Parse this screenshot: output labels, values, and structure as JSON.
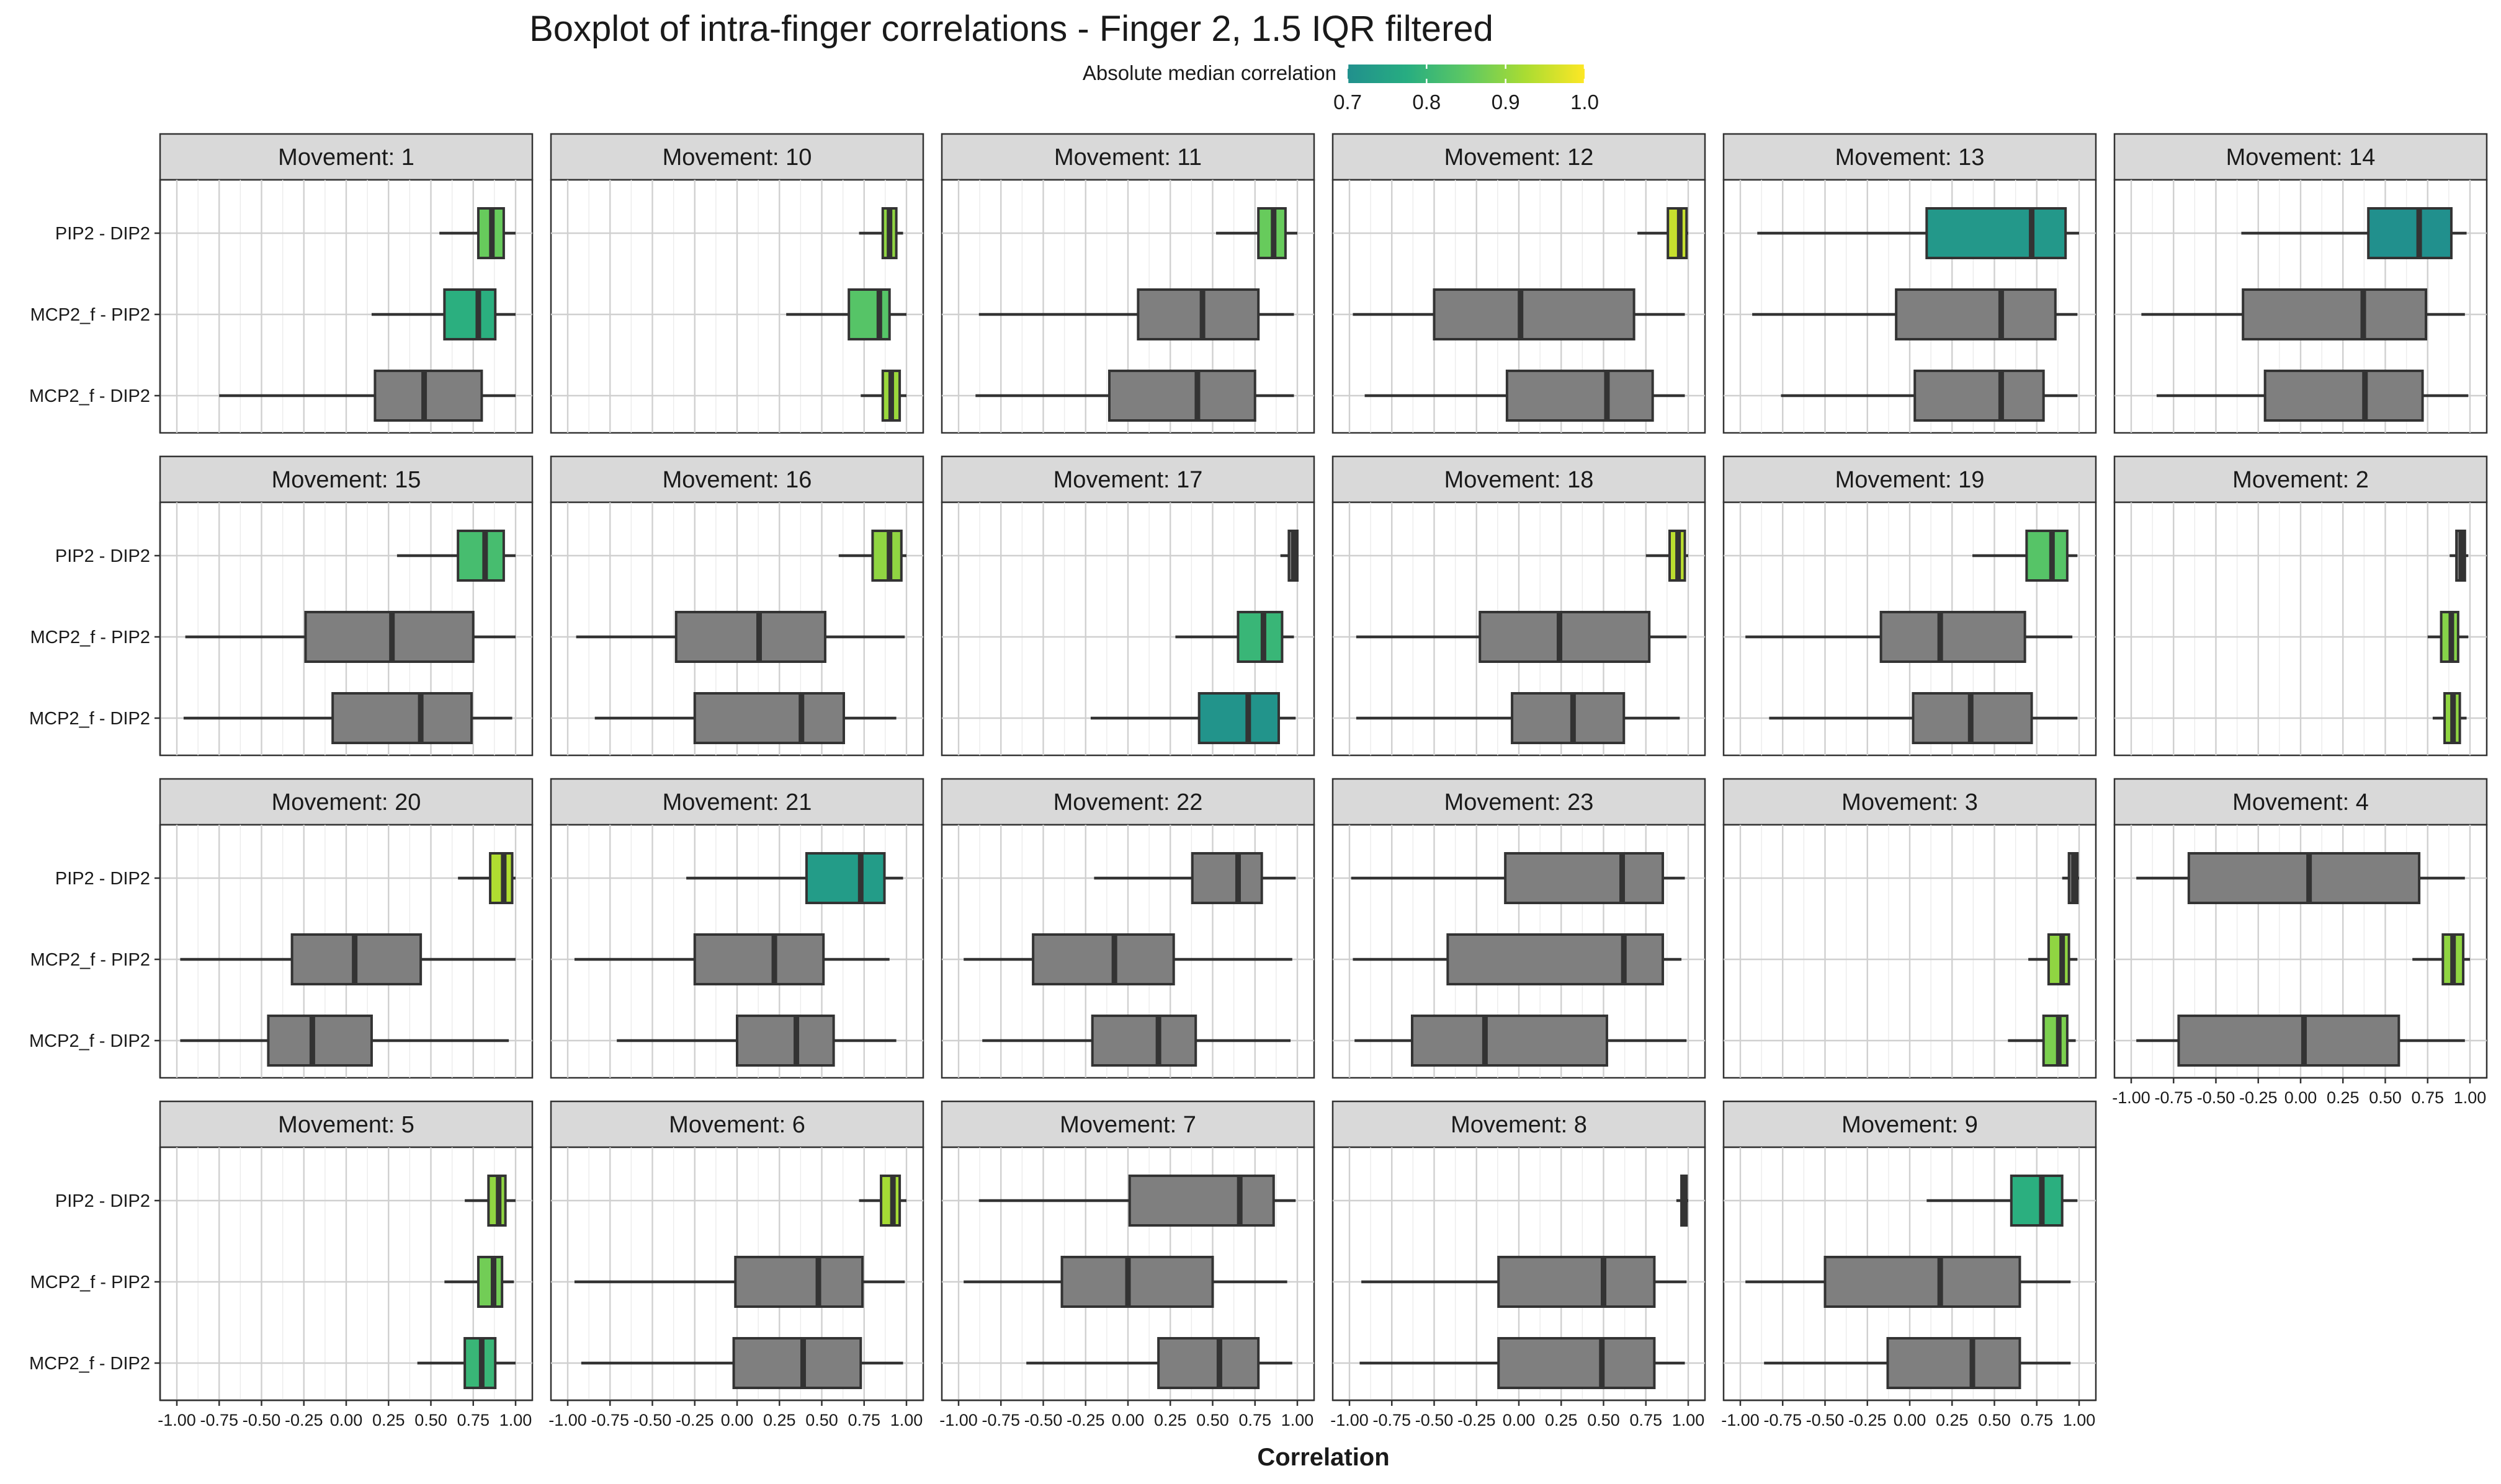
{
  "title": "Boxplot of intra-finger correlations - Finger 2, 1.5 IQR filtered",
  "chart_data": {
    "type": "boxplot",
    "facet_prefix": "Movement: ",
    "categories": [
      "PIP2 - DIP2",
      "MCP2_f - PIP2",
      "MCP2_f - DIP2"
    ],
    "xlabel": "Correlation",
    "xlim": [
      -1.0,
      1.0
    ],
    "x_ticks": [
      "-1.00",
      "-0.75",
      "-0.50",
      "-0.25",
      "0.00",
      "0.25",
      "0.50",
      "0.75",
      "1.00"
    ],
    "grid": true,
    "legend": {
      "title": "Absolute median correlation",
      "position": "top",
      "range": [
        0.7,
        1.0
      ],
      "ticks": [
        "0.7",
        "0.8",
        "0.9",
        "1.0"
      ],
      "colors": [
        "#21908d",
        "#27ad81",
        "#5dc863",
        "#aadc32",
        "#fde725"
      ],
      "na_color": "#7f7f7f"
    },
    "panels": [
      {
        "movement": "1",
        "boxes": [
          {
            "category": "PIP2 - DIP2",
            "min": 0.55,
            "q1": 0.78,
            "median": 0.86,
            "q3": 0.93,
            "max": 1.0,
            "colored": true
          },
          {
            "category": "MCP2_f - PIP2",
            "min": 0.15,
            "q1": 0.58,
            "median": 0.78,
            "q3": 0.88,
            "max": 1.0,
            "colored": true
          },
          {
            "category": "MCP2_f - DIP2",
            "min": -0.75,
            "q1": 0.17,
            "median": 0.46,
            "q3": 0.8,
            "max": 1.0,
            "colored": false
          }
        ]
      },
      {
        "movement": "10",
        "boxes": [
          {
            "category": "PIP2 - DIP2",
            "min": 0.72,
            "q1": 0.86,
            "median": 0.9,
            "q3": 0.94,
            "max": 0.98,
            "colored": true
          },
          {
            "category": "MCP2_f - PIP2",
            "min": 0.29,
            "q1": 0.66,
            "median": 0.84,
            "q3": 0.9,
            "max": 1.0,
            "colored": true
          },
          {
            "category": "MCP2_f - DIP2",
            "min": 0.73,
            "q1": 0.86,
            "median": 0.91,
            "q3": 0.96,
            "max": 1.0,
            "colored": true
          }
        ]
      },
      {
        "movement": "11",
        "boxes": [
          {
            "category": "PIP2 - DIP2",
            "min": 0.52,
            "q1": 0.77,
            "median": 0.86,
            "q3": 0.93,
            "max": 1.0,
            "colored": true
          },
          {
            "category": "MCP2_f - PIP2",
            "min": -0.88,
            "q1": 0.06,
            "median": 0.44,
            "q3": 0.77,
            "max": 0.98,
            "colored": false
          },
          {
            "category": "MCP2_f - DIP2",
            "min": -0.9,
            "q1": -0.11,
            "median": 0.41,
            "q3": 0.75,
            "max": 0.98,
            "colored": false
          }
        ]
      },
      {
        "movement": "12",
        "boxes": [
          {
            "category": "PIP2 - DIP2",
            "min": 0.7,
            "q1": 0.88,
            "median": 0.95,
            "q3": 0.99,
            "max": 1.0,
            "colored": true
          },
          {
            "category": "MCP2_f - PIP2",
            "min": -0.98,
            "q1": -0.5,
            "median": 0.01,
            "q3": 0.68,
            "max": 0.98,
            "colored": false
          },
          {
            "category": "MCP2_f - DIP2",
            "min": -0.91,
            "q1": -0.07,
            "median": 0.52,
            "q3": 0.79,
            "max": 0.98,
            "colored": false
          }
        ]
      },
      {
        "movement": "13",
        "boxes": [
          {
            "category": "PIP2 - DIP2",
            "min": -0.9,
            "q1": 0.1,
            "median": 0.72,
            "q3": 0.92,
            "max": 1.0,
            "colored": true
          },
          {
            "category": "MCP2_f - PIP2",
            "min": -0.93,
            "q1": -0.08,
            "median": 0.54,
            "q3": 0.86,
            "max": 0.99,
            "colored": false
          },
          {
            "category": "MCP2_f - DIP2",
            "min": -0.76,
            "q1": 0.03,
            "median": 0.54,
            "q3": 0.79,
            "max": 0.99,
            "colored": false
          }
        ]
      },
      {
        "movement": "14",
        "boxes": [
          {
            "category": "PIP2 - DIP2",
            "min": -0.35,
            "q1": 0.4,
            "median": 0.7,
            "q3": 0.89,
            "max": 0.98,
            "colored": true
          },
          {
            "category": "MCP2_f - PIP2",
            "min": -0.94,
            "q1": -0.34,
            "median": 0.37,
            "q3": 0.74,
            "max": 0.97,
            "colored": false
          },
          {
            "category": "MCP2_f - DIP2",
            "min": -0.85,
            "q1": -0.21,
            "median": 0.38,
            "q3": 0.72,
            "max": 0.99,
            "colored": false
          }
        ]
      },
      {
        "movement": "15",
        "boxes": [
          {
            "category": "PIP2 - DIP2",
            "min": 0.3,
            "q1": 0.66,
            "median": 0.82,
            "q3": 0.93,
            "max": 1.0,
            "colored": true
          },
          {
            "category": "MCP2_f - PIP2",
            "min": -0.95,
            "q1": -0.24,
            "median": 0.27,
            "q3": 0.75,
            "max": 1.0,
            "colored": false
          },
          {
            "category": "MCP2_f - DIP2",
            "min": -0.96,
            "q1": -0.08,
            "median": 0.44,
            "q3": 0.74,
            "max": 0.98,
            "colored": false
          }
        ]
      },
      {
        "movement": "16",
        "boxes": [
          {
            "category": "PIP2 - DIP2",
            "min": 0.6,
            "q1": 0.8,
            "median": 0.9,
            "q3": 0.97,
            "max": 1.0,
            "colored": true
          },
          {
            "category": "MCP2_f - PIP2",
            "min": -0.95,
            "q1": -0.36,
            "median": 0.13,
            "q3": 0.52,
            "max": 0.99,
            "colored": false
          },
          {
            "category": "MCP2_f - DIP2",
            "min": -0.84,
            "q1": -0.25,
            "median": 0.38,
            "q3": 0.63,
            "max": 0.94,
            "colored": false
          }
        ]
      },
      {
        "movement": "17",
        "boxes": [
          {
            "category": "PIP2 - DIP2",
            "min": 0.9,
            "q1": 0.95,
            "median": 0.98,
            "q3": 1.0,
            "max": 1.0,
            "colored": false
          },
          {
            "category": "MCP2_f - PIP2",
            "min": 0.28,
            "q1": 0.65,
            "median": 0.8,
            "q3": 0.91,
            "max": 0.98,
            "colored": true
          },
          {
            "category": "MCP2_f - DIP2",
            "min": -0.22,
            "q1": 0.42,
            "median": 0.71,
            "q3": 0.89,
            "max": 0.99,
            "colored": true
          }
        ]
      },
      {
        "movement": "18",
        "boxes": [
          {
            "category": "PIP2 - DIP2",
            "min": 0.75,
            "q1": 0.89,
            "median": 0.94,
            "q3": 0.98,
            "max": 1.0,
            "colored": true
          },
          {
            "category": "MCP2_f - PIP2",
            "min": -0.96,
            "q1": -0.23,
            "median": 0.24,
            "q3": 0.77,
            "max": 0.99,
            "colored": false
          },
          {
            "category": "MCP2_f - DIP2",
            "min": -0.96,
            "q1": -0.04,
            "median": 0.32,
            "q3": 0.62,
            "max": 0.95,
            "colored": false
          }
        ]
      },
      {
        "movement": "19",
        "boxes": [
          {
            "category": "PIP2 - DIP2",
            "min": 0.37,
            "q1": 0.69,
            "median": 0.84,
            "q3": 0.93,
            "max": 0.99,
            "colored": true
          },
          {
            "category": "MCP2_f - PIP2",
            "min": -0.97,
            "q1": -0.17,
            "median": 0.18,
            "q3": 0.68,
            "max": 0.96,
            "colored": false
          },
          {
            "category": "MCP2_f - DIP2",
            "min": -0.83,
            "q1": 0.02,
            "median": 0.36,
            "q3": 0.72,
            "max": 0.99,
            "colored": false
          }
        ]
      },
      {
        "movement": "2",
        "boxes": [
          {
            "category": "PIP2 - DIP2",
            "min": 0.88,
            "q1": 0.92,
            "median": 0.95,
            "q3": 0.97,
            "max": 0.99,
            "colored": false
          },
          {
            "category": "MCP2_f - PIP2",
            "min": 0.75,
            "q1": 0.83,
            "median": 0.89,
            "q3": 0.93,
            "max": 0.99,
            "colored": true
          },
          {
            "category": "MCP2_f - DIP2",
            "min": 0.78,
            "q1": 0.85,
            "median": 0.9,
            "q3": 0.94,
            "max": 0.98,
            "colored": true
          }
        ]
      },
      {
        "movement": "20",
        "boxes": [
          {
            "category": "PIP2 - DIP2",
            "min": 0.66,
            "q1": 0.85,
            "median": 0.93,
            "q3": 0.98,
            "max": 1.0,
            "colored": true
          },
          {
            "category": "MCP2_f - PIP2",
            "min": -0.98,
            "q1": -0.32,
            "median": 0.05,
            "q3": 0.44,
            "max": 1.0,
            "colored": false
          },
          {
            "category": "MCP2_f - DIP2",
            "min": -0.98,
            "q1": -0.46,
            "median": -0.2,
            "q3": 0.15,
            "max": 0.96,
            "colored": false
          }
        ]
      },
      {
        "movement": "21",
        "boxes": [
          {
            "category": "PIP2 - DIP2",
            "min": -0.3,
            "q1": 0.41,
            "median": 0.73,
            "q3": 0.87,
            "max": 0.98,
            "colored": true
          },
          {
            "category": "MCP2_f - PIP2",
            "min": -0.96,
            "q1": -0.25,
            "median": 0.22,
            "q3": 0.51,
            "max": 0.9,
            "colored": false
          },
          {
            "category": "MCP2_f - DIP2",
            "min": -0.71,
            "q1": 0.0,
            "median": 0.35,
            "q3": 0.57,
            "max": 0.94,
            "colored": false
          }
        ]
      },
      {
        "movement": "22",
        "boxes": [
          {
            "category": "PIP2 - DIP2",
            "min": -0.2,
            "q1": 0.38,
            "median": 0.65,
            "q3": 0.79,
            "max": 0.99,
            "colored": false
          },
          {
            "category": "MCP2_f - PIP2",
            "min": -0.97,
            "q1": -0.56,
            "median": -0.08,
            "q3": 0.27,
            "max": 0.97,
            "colored": false
          },
          {
            "category": "MCP2_f - DIP2",
            "min": -0.86,
            "q1": -0.21,
            "median": 0.18,
            "q3": 0.4,
            "max": 0.96,
            "colored": false
          }
        ]
      },
      {
        "movement": "23",
        "boxes": [
          {
            "category": "PIP2 - DIP2",
            "min": -0.99,
            "q1": -0.08,
            "median": 0.61,
            "q3": 0.85,
            "max": 0.98,
            "colored": false
          },
          {
            "category": "MCP2_f - PIP2",
            "min": -0.98,
            "q1": -0.42,
            "median": 0.62,
            "q3": 0.85,
            "max": 0.96,
            "colored": false
          },
          {
            "category": "MCP2_f - DIP2",
            "min": -0.97,
            "q1": -0.63,
            "median": -0.2,
            "q3": 0.52,
            "max": 0.99,
            "colored": false
          }
        ]
      },
      {
        "movement": "3",
        "boxes": [
          {
            "category": "PIP2 - DIP2",
            "min": 0.9,
            "q1": 0.94,
            "median": 0.97,
            "q3": 0.99,
            "max": 1.0,
            "colored": false
          },
          {
            "category": "MCP2_f - PIP2",
            "min": 0.7,
            "q1": 0.82,
            "median": 0.9,
            "q3": 0.94,
            "max": 0.99,
            "colored": true
          },
          {
            "category": "MCP2_f - DIP2",
            "min": 0.58,
            "q1": 0.79,
            "median": 0.88,
            "q3": 0.93,
            "max": 0.98,
            "colored": true
          }
        ]
      },
      {
        "movement": "4",
        "boxes": [
          {
            "category": "PIP2 - DIP2",
            "min": -0.97,
            "q1": -0.66,
            "median": 0.05,
            "q3": 0.7,
            "max": 0.97,
            "colored": false
          },
          {
            "category": "MCP2_f - PIP2",
            "min": 0.66,
            "q1": 0.84,
            "median": 0.9,
            "q3": 0.96,
            "max": 1.0,
            "colored": true
          },
          {
            "category": "MCP2_f - DIP2",
            "min": -0.97,
            "q1": -0.72,
            "median": 0.02,
            "q3": 0.58,
            "max": 0.97,
            "colored": false
          }
        ]
      },
      {
        "movement": "5",
        "boxes": [
          {
            "category": "PIP2 - DIP2",
            "min": 0.7,
            "q1": 0.84,
            "median": 0.9,
            "q3": 0.94,
            "max": 1.0,
            "colored": true
          },
          {
            "category": "MCP2_f - PIP2",
            "min": 0.58,
            "q1": 0.78,
            "median": 0.87,
            "q3": 0.92,
            "max": 0.99,
            "colored": true
          },
          {
            "category": "MCP2_f - DIP2",
            "min": 0.42,
            "q1": 0.7,
            "median": 0.8,
            "q3": 0.88,
            "max": 1.0,
            "colored": true
          }
        ]
      },
      {
        "movement": "6",
        "boxes": [
          {
            "category": "PIP2 - DIP2",
            "min": 0.72,
            "q1": 0.85,
            "median": 0.92,
            "q3": 0.96,
            "max": 1.0,
            "colored": true
          },
          {
            "category": "MCP2_f - PIP2",
            "min": -0.96,
            "q1": -0.01,
            "median": 0.48,
            "q3": 0.74,
            "max": 0.99,
            "colored": false
          },
          {
            "category": "MCP2_f - DIP2",
            "min": -0.92,
            "q1": -0.02,
            "median": 0.39,
            "q3": 0.73,
            "max": 0.98,
            "colored": false
          }
        ]
      },
      {
        "movement": "7",
        "boxes": [
          {
            "category": "PIP2 - DIP2",
            "min": -0.88,
            "q1": 0.01,
            "median": 0.66,
            "q3": 0.86,
            "max": 0.99,
            "colored": false
          },
          {
            "category": "MCP2_f - PIP2",
            "min": -0.97,
            "q1": -0.39,
            "median": 0.0,
            "q3": 0.5,
            "max": 0.94,
            "colored": false
          },
          {
            "category": "MCP2_f - DIP2",
            "min": -0.6,
            "q1": 0.18,
            "median": 0.54,
            "q3": 0.77,
            "max": 0.97,
            "colored": false
          }
        ]
      },
      {
        "movement": "8",
        "boxes": [
          {
            "category": "PIP2 - DIP2",
            "min": 0.93,
            "q1": 0.96,
            "median": 0.98,
            "q3": 0.99,
            "max": 1.0,
            "colored": false
          },
          {
            "category": "MCP2_f - PIP2",
            "min": -0.93,
            "q1": -0.12,
            "median": 0.5,
            "q3": 0.8,
            "max": 0.99,
            "colored": false
          },
          {
            "category": "MCP2_f - DIP2",
            "min": -0.94,
            "q1": -0.12,
            "median": 0.49,
            "q3": 0.8,
            "max": 0.98,
            "colored": false
          }
        ]
      },
      {
        "movement": "9",
        "boxes": [
          {
            "category": "PIP2 - DIP2",
            "min": 0.1,
            "q1": 0.6,
            "median": 0.78,
            "q3": 0.9,
            "max": 0.99,
            "colored": true
          },
          {
            "category": "MCP2_f - PIP2",
            "min": -0.97,
            "q1": -0.5,
            "median": 0.18,
            "q3": 0.65,
            "max": 0.95,
            "colored": false
          },
          {
            "category": "MCP2_f - DIP2",
            "min": -0.86,
            "q1": -0.13,
            "median": 0.37,
            "q3": 0.65,
            "max": 0.95,
            "colored": false
          }
        ]
      }
    ]
  }
}
